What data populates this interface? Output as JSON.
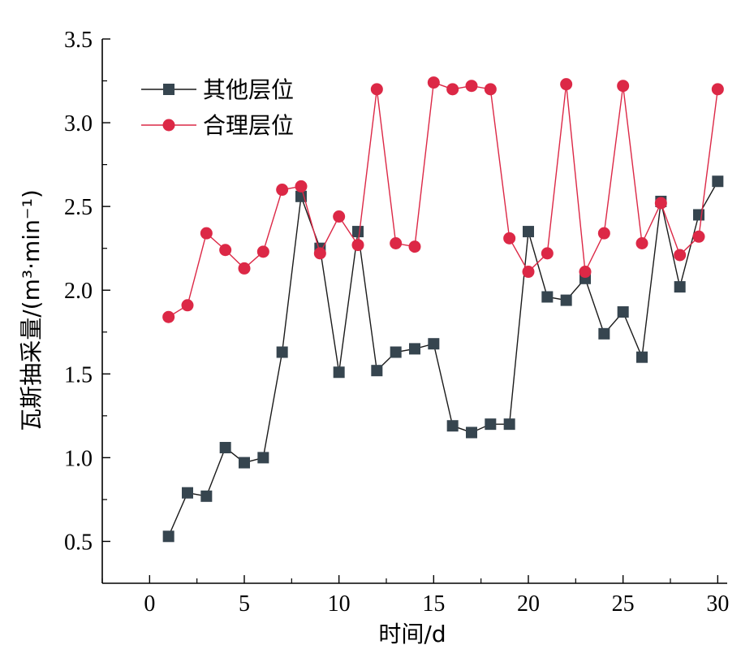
{
  "chart_data": {
    "type": "line",
    "xlabel": "时间/d",
    "ylabel": "瓦斯抽采量/(m³·min⁻¹)",
    "xlim": [
      -2.5,
      30.5
    ],
    "ylim": [
      0.25,
      3.5
    ],
    "xticks": [
      0,
      5,
      10,
      15,
      20,
      25,
      30
    ],
    "xtick_labels": [
      "0",
      "5",
      "10",
      "15",
      "20",
      "25",
      "30"
    ],
    "yticks": [
      0.5,
      1.0,
      1.5,
      2.0,
      2.5,
      3.0,
      3.5
    ],
    "ytick_labels": [
      "0.5",
      "1.0",
      "1.5",
      "2.0",
      "2.5",
      "3.0",
      "3.5"
    ],
    "grid": false,
    "legend_position": "top-left",
    "x": [
      1,
      2,
      3,
      4,
      5,
      6,
      7,
      8,
      9,
      10,
      11,
      12,
      13,
      14,
      15,
      16,
      17,
      18,
      19,
      20,
      21,
      22,
      23,
      24,
      25,
      26,
      27,
      28,
      29,
      30
    ],
    "series": [
      {
        "name": "其他层位",
        "marker": "square",
        "color": "#36454f",
        "line_color": "#1a1a1a",
        "values": [
          0.53,
          0.79,
          0.77,
          1.06,
          0.97,
          1.0,
          1.63,
          2.56,
          2.25,
          1.51,
          2.35,
          1.52,
          1.63,
          1.65,
          1.68,
          1.19,
          1.15,
          1.2,
          1.2,
          2.35,
          1.96,
          1.94,
          2.07,
          1.74,
          1.87,
          1.6,
          2.53,
          2.02,
          2.45,
          2.65
        ]
      },
      {
        "name": "合理层位",
        "marker": "circle",
        "color": "#dc2846",
        "line_color": "#dc2846",
        "values": [
          1.84,
          1.91,
          2.34,
          2.24,
          2.13,
          2.23,
          2.6,
          2.62,
          2.22,
          2.44,
          2.27,
          3.2,
          2.28,
          2.26,
          3.24,
          3.2,
          3.22,
          3.2,
          2.31,
          2.11,
          2.22,
          3.23,
          2.11,
          2.34,
          3.22,
          2.28,
          2.52,
          2.21,
          2.32,
          3.2
        ]
      }
    ]
  }
}
